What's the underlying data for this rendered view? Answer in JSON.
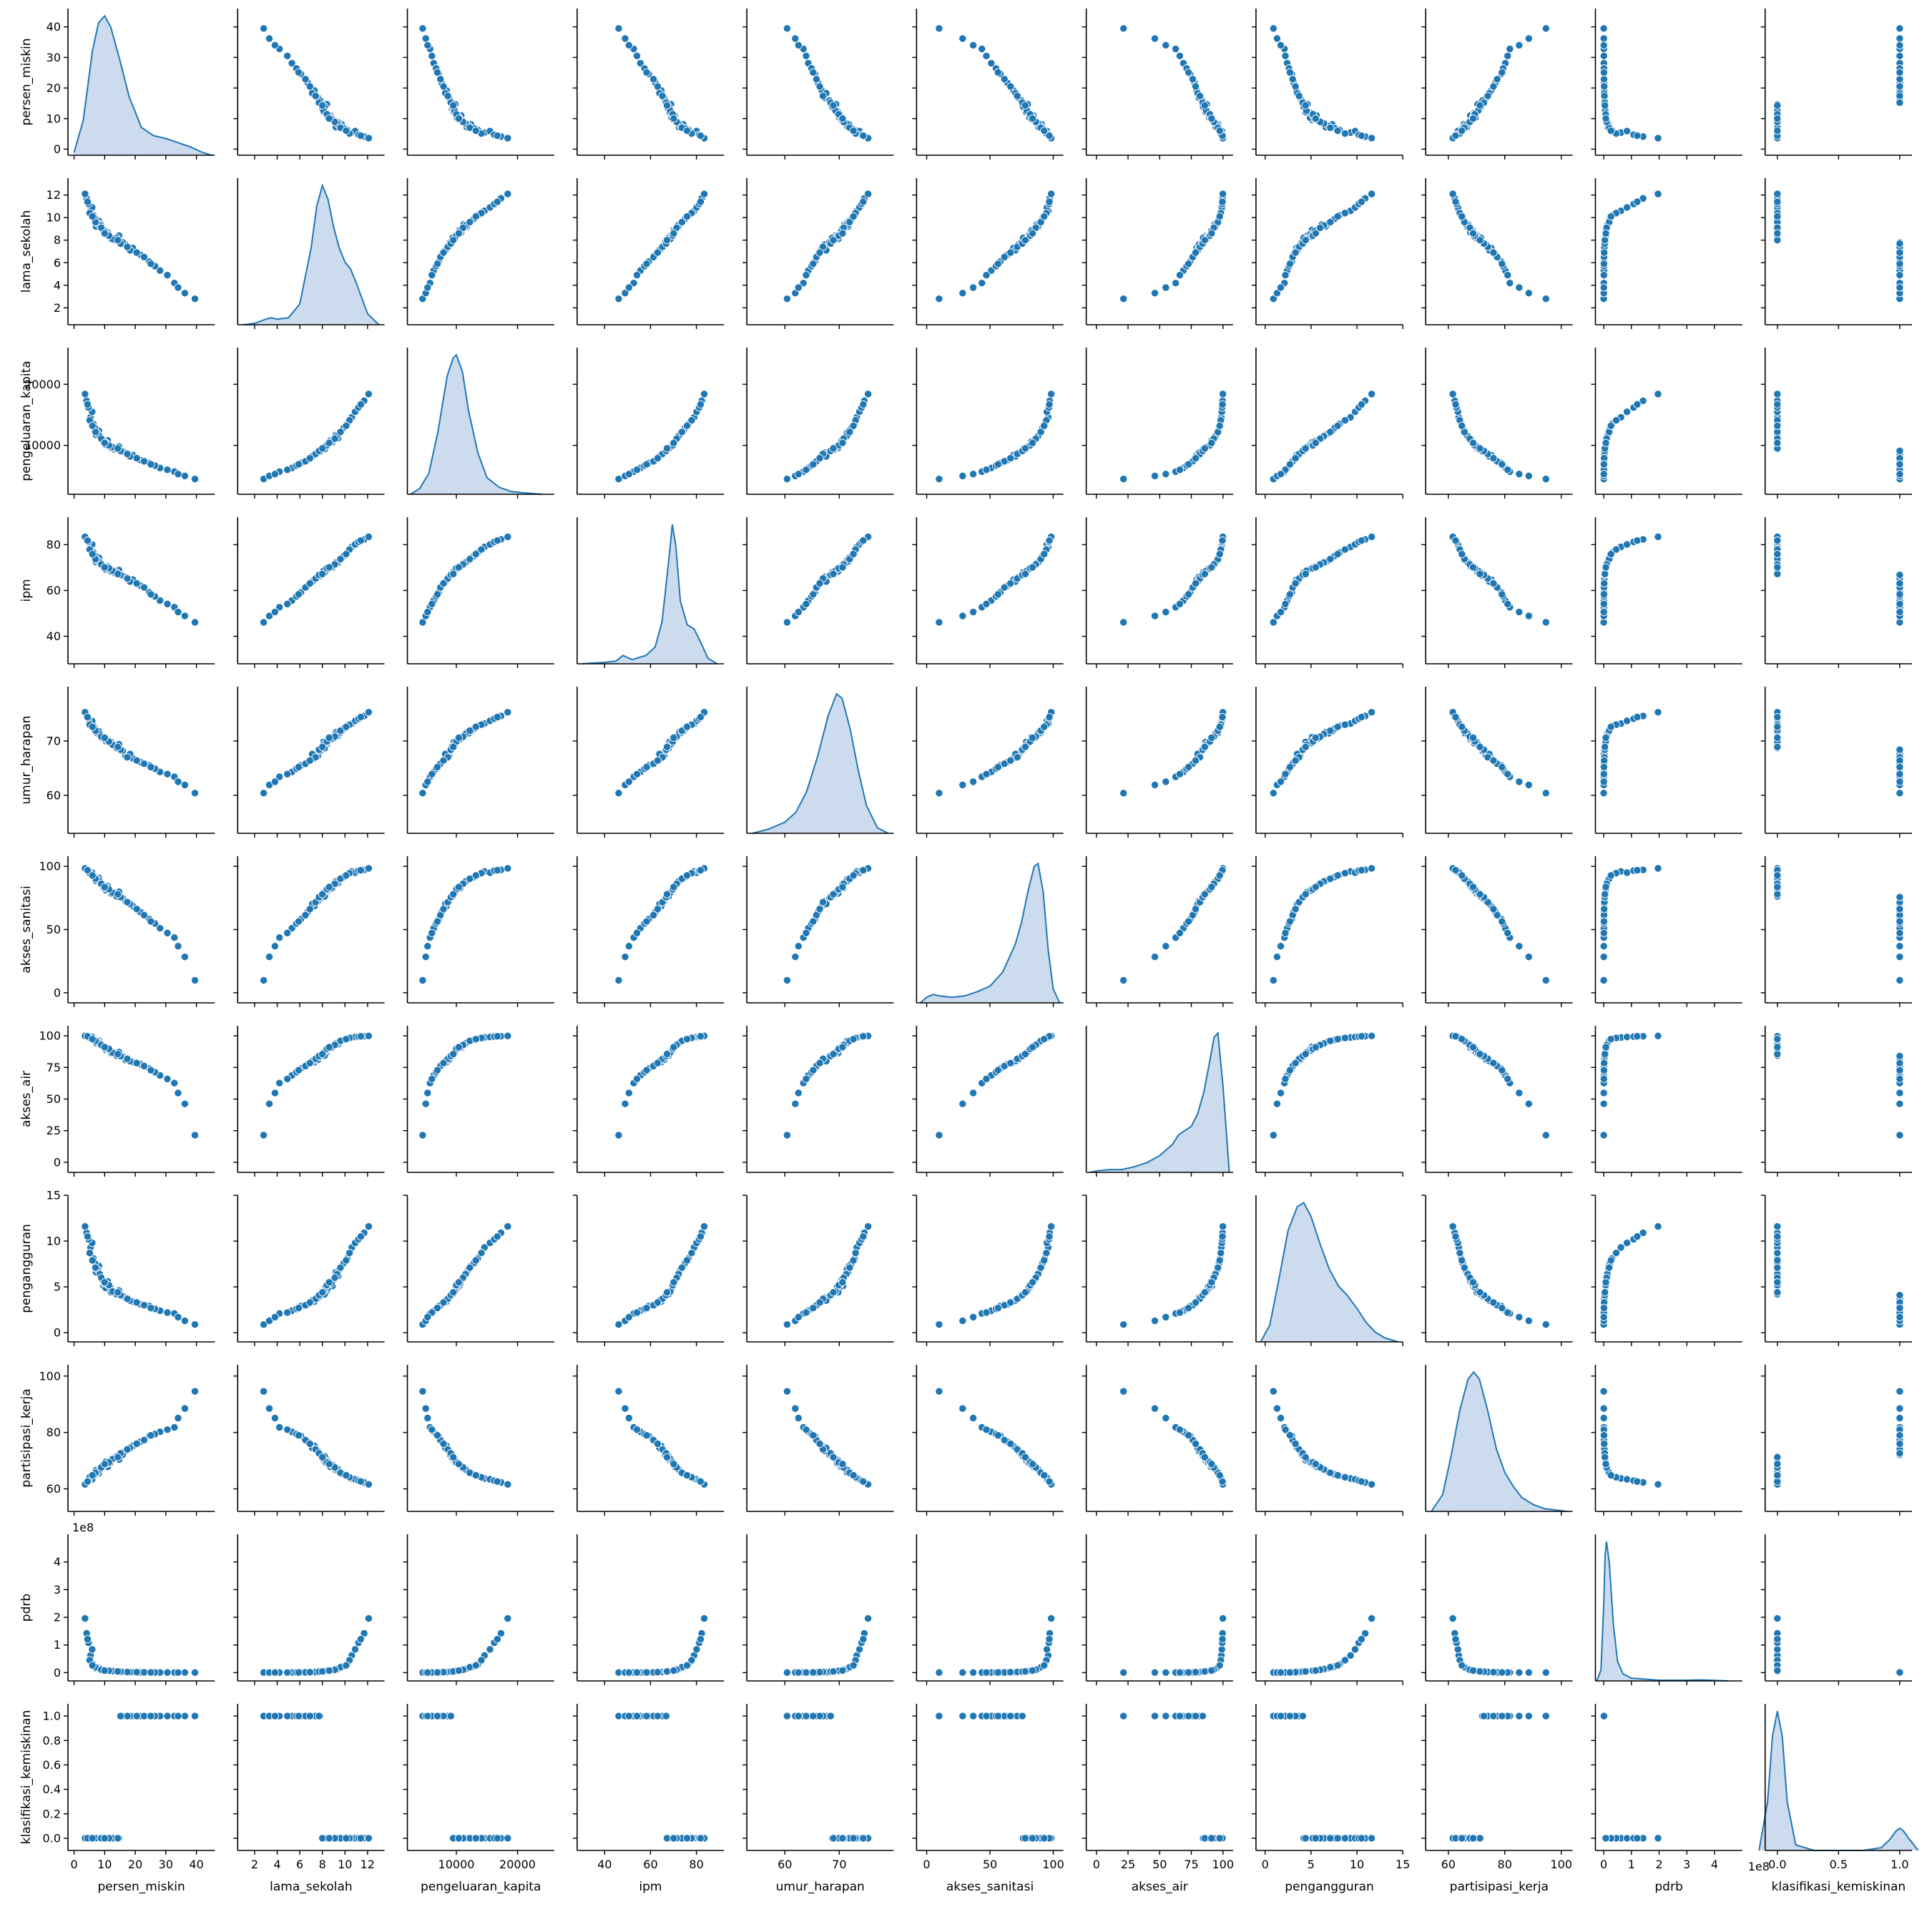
{
  "chart_data": {
    "type": "scatter",
    "subtype": "pairplot",
    "diagonal": "kde",
    "grid": false,
    "colors": {
      "point": "#1f77b4",
      "kde_line": "#1f77b4",
      "kde_fill": "#c6d7ec",
      "point_edge": "#ffffff"
    },
    "variables": [
      {
        "name": "persen_miskin",
        "range": [
          -2,
          46
        ],
        "ticks": [
          0,
          10,
          20,
          30,
          40
        ],
        "tick_labels": [
          "0",
          "10",
          "20",
          "30",
          "40"
        ],
        "kde": {
          "x": [
            0,
            3,
            6,
            8,
            10,
            12,
            15,
            18,
            22,
            26,
            30,
            34,
            38,
            42,
            45
          ],
          "y": [
            0.02,
            0.25,
            0.75,
            0.95,
            1.0,
            0.92,
            0.68,
            0.42,
            0.2,
            0.14,
            0.12,
            0.09,
            0.06,
            0.02,
            0.0
          ]
        }
      },
      {
        "name": "lama_sekolah",
        "range": [
          0.5,
          13.5
        ],
        "ticks": [
          2,
          4,
          6,
          8,
          10,
          12
        ],
        "tick_labels": [
          "2",
          "4",
          "6",
          "8",
          "10",
          "12"
        ],
        "kde": {
          "x": [
            1,
            2,
            3,
            3.5,
            4,
            5,
            6,
            7,
            7.5,
            8,
            8.5,
            9,
            9.5,
            10,
            10.5,
            11,
            12,
            13
          ],
          "y": [
            0.0,
            0.01,
            0.04,
            0.05,
            0.04,
            0.05,
            0.15,
            0.55,
            0.85,
            1.0,
            0.9,
            0.7,
            0.55,
            0.45,
            0.4,
            0.3,
            0.08,
            0.0
          ]
        }
      },
      {
        "name": "pengeluaran_kapita",
        "range": [
          2000,
          26000
        ],
        "ticks": [
          10000,
          20000
        ],
        "tick_labels": [
          "10000",
          "20000"
        ],
        "kde": {
          "x": [
            2500,
            4000,
            5500,
            7000,
            8500,
            9500,
            10000,
            11000,
            12000,
            13500,
            15000,
            17000,
            19000,
            21000,
            24000
          ],
          "y": [
            0.0,
            0.04,
            0.15,
            0.45,
            0.85,
            0.98,
            1.0,
            0.88,
            0.6,
            0.3,
            0.12,
            0.05,
            0.02,
            0.01,
            0.0
          ]
        }
      },
      {
        "name": "ipm",
        "range": [
          28,
          92
        ],
        "ticks": [
          40,
          60,
          80
        ],
        "tick_labels": [
          "40",
          "60",
          "80"
        ],
        "kde": {
          "x": [
            30,
            40,
            45,
            48,
            52,
            58,
            62,
            65,
            68,
            69.5,
            71,
            73,
            76,
            79,
            82,
            85,
            89
          ],
          "y": [
            0.0,
            0.01,
            0.02,
            0.06,
            0.03,
            0.06,
            0.12,
            0.3,
            0.75,
            1.0,
            0.85,
            0.45,
            0.28,
            0.25,
            0.15,
            0.04,
            0.0
          ]
        }
      },
      {
        "name": "umur_harapan",
        "range": [
          53,
          80
        ],
        "ticks": [
          60,
          70
        ],
        "tick_labels": [
          "60",
          "70"
        ],
        "kde": {
          "x": [
            54,
            57,
            60,
            62,
            64,
            66,
            68,
            69.5,
            70.5,
            72,
            73.5,
            75,
            77,
            79
          ],
          "y": [
            0.0,
            0.03,
            0.08,
            0.15,
            0.3,
            0.55,
            0.85,
            1.0,
            0.97,
            0.75,
            0.45,
            0.2,
            0.04,
            0.0
          ]
        }
      },
      {
        "name": "akses_sanitasi",
        "range": [
          -8,
          108
        ],
        "ticks": [
          0,
          50,
          100
        ],
        "tick_labels": [
          "0",
          "50",
          "100"
        ],
        "kde": {
          "x": [
            -5,
            0,
            5,
            10,
            20,
            30,
            40,
            50,
            60,
            70,
            75,
            80,
            85,
            88,
            92,
            96,
            100,
            105
          ],
          "y": [
            0.0,
            0.04,
            0.06,
            0.05,
            0.04,
            0.05,
            0.08,
            0.12,
            0.22,
            0.42,
            0.58,
            0.8,
            0.98,
            1.0,
            0.8,
            0.38,
            0.1,
            0.0
          ]
        }
      },
      {
        "name": "akses_air",
        "range": [
          -8,
          108
        ],
        "ticks": [
          0,
          25,
          50,
          75,
          100
        ],
        "tick_labels": [
          "0",
          "25",
          "50",
          "75",
          "100"
        ],
        "kde": {
          "x": [
            -5,
            0,
            10,
            20,
            30,
            40,
            50,
            60,
            65,
            70,
            75,
            80,
            85,
            90,
            93,
            96,
            100,
            105
          ],
          "y": [
            0.0,
            0.01,
            0.02,
            0.02,
            0.04,
            0.07,
            0.12,
            0.2,
            0.27,
            0.3,
            0.33,
            0.42,
            0.58,
            0.82,
            0.97,
            1.0,
            0.62,
            0.0
          ]
        }
      },
      {
        "name": "pengangguran",
        "range": [
          -1,
          15
        ],
        "ticks": [
          0,
          5,
          10,
          15
        ],
        "tick_labels": [
          "0",
          "5",
          "10",
          "15"
        ],
        "kde": {
          "x": [
            -0.5,
            0.5,
            1.5,
            2.5,
            3.5,
            4.2,
            5,
            6,
            7,
            8,
            9,
            10,
            11,
            12,
            13,
            14.5
          ],
          "y": [
            0.0,
            0.12,
            0.45,
            0.8,
            0.97,
            1.0,
            0.9,
            0.7,
            0.52,
            0.4,
            0.33,
            0.24,
            0.14,
            0.07,
            0.03,
            0.0
          ]
        }
      },
      {
        "name": "partisipasi_kerja",
        "range": [
          52,
          104
        ],
        "ticks": [
          60,
          80,
          100
        ],
        "tick_labels": [
          "60",
          "80",
          "100"
        ],
        "kde": {
          "x": [
            54,
            58,
            61,
            64,
            67,
            69,
            71,
            74,
            77,
            80,
            83,
            86,
            90,
            94,
            98,
            102
          ],
          "y": [
            0.0,
            0.12,
            0.4,
            0.72,
            0.95,
            1.0,
            0.95,
            0.72,
            0.45,
            0.28,
            0.18,
            0.1,
            0.05,
            0.02,
            0.01,
            0.0
          ]
        }
      },
      {
        "name": "pdrb",
        "range": [
          -30000000,
          500000000
        ],
        "ticks": [
          0,
          100000000,
          200000000,
          300000000,
          400000000
        ],
        "tick_labels": [
          "0",
          "1",
          "2",
          "3",
          "4"
        ],
        "offset_text": "1e8",
        "kde": {
          "x": [
            -25000000,
            -10000000,
            0,
            5000000,
            10000000,
            20000000,
            35000000,
            50000000,
            70000000,
            100000000,
            200000000,
            300000000,
            350000000,
            450000000
          ],
          "y": [
            0.0,
            0.08,
            0.55,
            0.9,
            1.0,
            0.85,
            0.4,
            0.14,
            0.05,
            0.02,
            0.005,
            0.005,
            0.008,
            0.0
          ]
        }
      },
      {
        "name": "klasifikasi_kemiskinan",
        "range": [
          -0.1,
          1.1
        ],
        "ticks": [
          0.0,
          0.2,
          0.4,
          0.6,
          0.8,
          1.0
        ],
        "tick_labels": [
          "0.0",
          "0.2",
          "0.4",
          "0.6",
          "0.8",
          "1.0"
        ],
        "xticks": [
          0.0,
          0.5,
          1.0
        ],
        "xtick_labels": [
          "0.0",
          "0.5",
          "1.0"
        ],
        "kde": {
          "x": [
            -0.15,
            -0.08,
            -0.04,
            0.0,
            0.04,
            0.08,
            0.15,
            0.3,
            0.5,
            0.7,
            0.85,
            0.92,
            0.97,
            1.0,
            1.03,
            1.08,
            1.15
          ],
          "y": [
            0.0,
            0.35,
            0.82,
            1.0,
            0.82,
            0.35,
            0.04,
            0.0,
            0.0,
            0.0,
            0.02,
            0.08,
            0.14,
            0.16,
            0.14,
            0.08,
            0.0
          ]
        }
      }
    ],
    "points": [
      [
        14.7,
        8.4,
        9800,
        68.9,
        69.4,
        79.8,
        87.1,
        4.6,
        70.4,
        5600000,
        0
      ],
      [
        32.8,
        4.2,
        5700,
        52.7,
        63.4,
        43.6,
        62.6,
        2.1,
        81.8,
        400000,
        1
      ],
      [
        8.1,
        9.7,
        12400,
        74.3,
        71.8,
        90.8,
        96.2,
        7.3,
        65.5,
        18500000,
        0
      ],
      [
        5.4,
        10.6,
        14600,
        79.0,
        73.2,
        96.0,
        98.7,
        9.3,
        63.7,
        62000000,
        0
      ],
      [
        19.2,
        7.3,
        8400,
        64.7,
        66.8,
        68.6,
        79.2,
        3.4,
        75.2,
        2100000,
        1
      ],
      [
        11.0,
        8.7,
        10800,
        70.5,
        70.3,
        84.3,
        90.5,
        5.6,
        67.8,
        8800000,
        0
      ],
      [
        24.6,
        6.1,
        7100,
        59.2,
        65.5,
        58.2,
        74.1,
        2.9,
        78.8,
        900000,
        1
      ],
      [
        7.2,
        9.2,
        11700,
        72.4,
        71.6,
        88.4,
        94.4,
        6.6,
        66.6,
        14100000,
        0
      ],
      [
        4.1,
        11.7,
        17300,
        82.3,
        74.6,
        97.2,
        99.7,
        10.9,
        62.3,
        142000000,
        0
      ],
      [
        13.3,
        8.0,
        9300,
        67.6,
        69.0,
        77.4,
        85.2,
        4.3,
        70.9,
        4500000,
        0
      ],
      [
        39.5,
        2.8,
        4500,
        46.1,
        60.4,
        9.8,
        21.4,
        0.9,
        94.6,
        150000,
        1
      ],
      [
        9.6,
        8.9,
        10500,
        70.0,
        70.7,
        82.6,
        91.3,
        5.1,
        68.7,
        7400000,
        0
      ],
      [
        16.8,
        7.6,
        8800,
        65.9,
        67.3,
        72.4,
        81.0,
        3.8,
        73.4,
        2600000,
        1
      ],
      [
        6.3,
        10.2,
        13500,
        76.5,
        72.8,
        93.2,
        97.7,
        8.1,
        64.6,
        29600000,
        0
      ],
      [
        28.1,
        5.3,
        6300,
        55.6,
        64.3,
        51.0,
        68.7,
        2.4,
        80.2,
        600000,
        1
      ],
      [
        10.3,
        8.5,
        10100,
        69.2,
        70.0,
        81.2,
        89.1,
        4.9,
        69.6,
        6200000,
        0
      ],
      [
        12.1,
        8.1,
        9600,
        68.3,
        69.8,
        78.6,
        86.3,
        4.4,
        70.1,
        5100000,
        0
      ],
      [
        21.7,
        6.7,
        7600,
        62.1,
        66.1,
        63.8,
        77.5,
        3.1,
        76.7,
        1400000,
        1
      ],
      [
        8.7,
        9.4,
        11200,
        72.0,
        71.0,
        87.0,
        93.2,
        6.2,
        67.1,
        11600000,
        0
      ],
      [
        5.9,
        10.9,
        15500,
        80.1,
        73.7,
        95.0,
        99.1,
        9.8,
        63.4,
        84000000,
        0
      ],
      [
        15.9,
        7.8,
        9000,
        66.4,
        68.2,
        74.8,
        83.6,
        4.0,
        72.1,
        3300000,
        1
      ],
      [
        36.2,
        3.3,
        5000,
        48.9,
        61.9,
        28.4,
        46.2,
        1.3,
        88.5,
        250000,
        1
      ],
      [
        7.6,
        9.5,
        12000,
        73.1,
        71.4,
        89.6,
        95.8,
        6.9,
        65.9,
        16400000,
        0
      ],
      [
        11.8,
        8.3,
        9900,
        69.5,
        69.6,
        80.7,
        88.4,
        5.0,
        69.2,
        6800000,
        0
      ],
      [
        4.7,
        11.2,
        16200,
        81.2,
        74.1,
        96.6,
        99.4,
        10.2,
        62.9,
        108000000,
        0
      ],
      [
        18.3,
        7.1,
        8200,
        63.9,
        67.6,
        70.2,
        80.0,
        3.5,
        74.5,
        1800000,
        1
      ],
      [
        9.2,
        9.0,
        10900,
        71.0,
        70.5,
        85.4,
        92.1,
        5.8,
        68.2,
        9200000,
        0
      ],
      [
        26.4,
        5.7,
        6700,
        57.4,
        64.9,
        54.8,
        71.3,
        2.6,
        79.4,
        750000,
        1
      ],
      [
        13.9,
        8.2,
        9400,
        67.9,
        68.7,
        76.2,
        84.4,
        4.2,
        71.5,
        3900000,
        0
      ],
      [
        6.8,
        9.9,
        12900,
        75.1,
        72.3,
        91.6,
        96.9,
        7.6,
        65.1,
        22800000,
        0
      ],
      [
        10.7,
        8.6,
        10300,
        69.9,
        70.2,
        83.0,
        90.0,
        5.3,
        68.9,
        7900000,
        0
      ],
      [
        22.9,
        6.5,
        7400,
        61.3,
        65.8,
        61.4,
        76.1,
        3.0,
        77.3,
        1100000,
        1
      ],
      [
        3.6,
        12.1,
        18400,
        83.4,
        75.3,
        98.4,
        99.9,
        11.6,
        61.6,
        196000000,
        0
      ],
      [
        17.4,
        7.4,
        8600,
        65.2,
        67.0,
        71.6,
        81.8,
        3.7,
        74.0,
        2300000,
        1
      ],
      [
        8.4,
        9.3,
        11500,
        72.2,
        71.3,
        88.0,
        94.0,
        6.4,
        66.9,
        12900000,
        0
      ],
      [
        30.5,
        4.9,
        6000,
        54.1,
        63.9,
        47.2,
        65.9,
        2.2,
        81.0,
        500000,
        1
      ],
      [
        12.6,
        8.1,
        9700,
        68.6,
        69.3,
        79.2,
        86.8,
        4.5,
        70.6,
        5300000,
        0
      ],
      [
        5.1,
        10.4,
        14100,
        77.9,
        73.0,
        94.6,
        98.3,
        8.7,
        64.1,
        45000000,
        0
      ],
      [
        15.2,
        7.7,
        9100,
        66.8,
        68.4,
        75.6,
        84.0,
        4.1,
        72.6,
        3600000,
        1
      ],
      [
        9.9,
        8.8,
        10600,
        70.3,
        70.4,
        82.8,
        90.8,
        5.4,
        68.5,
        8200000,
        0
      ],
      [
        7.0,
        9.6,
        12200,
        73.7,
        71.9,
        90.2,
        96.0,
        7.1,
        65.7,
        19700000,
        0
      ],
      [
        20.5,
        6.9,
        7900,
        63.1,
        66.4,
        66.2,
        78.4,
        3.3,
        76.0,
        1600000,
        1
      ],
      [
        11.4,
        8.4,
        10000,
        69.7,
        69.9,
        81.8,
        89.7,
        5.2,
        69.4,
        7100000,
        0
      ],
      [
        4.4,
        11.4,
        16700,
        81.8,
        74.4,
        96.9,
        99.6,
        10.5,
        62.6,
        121000000,
        0
      ],
      [
        34.0,
        3.8,
        5300,
        50.6,
        62.5,
        36.8,
        54.8,
        1.7,
        85.1,
        320000,
        1
      ],
      [
        8.9,
        9.1,
        11100,
        71.4,
        70.8,
        86.2,
        92.8,
        6.0,
        67.6,
        10300000,
        0
      ],
      [
        14.3,
        8.0,
        9500,
        67.2,
        68.9,
        77.9,
        85.6,
        4.4,
        71.2,
        4200000,
        0
      ],
      [
        6.0,
        10.1,
        13200,
        75.9,
        72.6,
        92.8,
        97.4,
        7.9,
        64.8,
        26100000,
        0
      ],
      [
        25.1,
        5.9,
        6900,
        58.3,
        65.2,
        56.4,
        72.8,
        2.7,
        79.0,
        820000,
        1
      ],
      [
        10.0,
        8.6,
        10400,
        70.1,
        70.6,
        83.6,
        91.0,
        5.5,
        68.8,
        7600000,
        0
      ]
    ]
  }
}
